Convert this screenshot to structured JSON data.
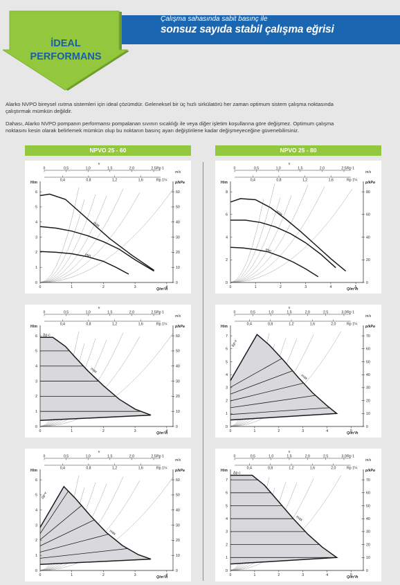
{
  "header": {
    "banner_sub": "Çalışma sahasında sabit basınç ile",
    "banner_main": "sonsuz sayıda stabil çalışma eğrisi",
    "arrow_line1": "İDEAL",
    "arrow_line2": "PERFORMANS"
  },
  "intro": {
    "p1_l1": "Alarko NVPO bireysel ısıtma sistemleri için ideal çözümdür. Geleneksel bir üç hızlı sirkülatörü her zaman optimum sistem çalışma noktasında",
    "p1_l2": "çalıştırmak mümkün değildir.",
    "p2_l1": "Dahası, Alarko NVPO pompanın performansı pompalanan sıvının sıcaklığı ile veya diğer işletim koşullarına göre değişmez. Optimum çalışma",
    "p2_l2": "noktasını kesin olarak belirlemek mümkün olup bu noktanın basınç ayarı değiştirilene kadar değişmeyeceğine güvenebilirsiniz."
  },
  "columns": [
    {
      "title": "NPVO 25 - 60"
    },
    {
      "title": "NPVO 25 - 80"
    }
  ],
  "colors": {
    "curve": "#1a1a1a",
    "fill": "#d9d9dd",
    "grid": "#8a8a8a",
    "banner": "#1a66b0",
    "arrow": "#93c83e",
    "col_head": "#93c83e"
  },
  "chart_data": [
    {
      "type": "line",
      "model": "NPVO 25 - 60",
      "mode": "speed",
      "ylabel": "H/m",
      "y2label": "p/kPa",
      "xlabel": "Q/m³/h",
      "v_label": "v",
      "v_unit": "m/s",
      "rp_label": "Rp 1¼",
      "v_ticks": [
        "0",
        "0,5",
        "1,0",
        "1,5",
        "2,0",
        "2,5"
      ],
      "v2_ticks": [
        "0,4",
        "0,8",
        "1,2",
        "1,6"
      ],
      "rp_top": "Rp 1",
      "xticks": [
        0,
        1,
        2,
        3,
        4
      ],
      "yticks": [
        0,
        1,
        2,
        3,
        4,
        5,
        6
      ],
      "y2ticks": [
        0,
        10,
        20,
        30,
        40,
        50,
        60
      ],
      "xlim": [
        0,
        4.2
      ],
      "ylim": [
        0,
        6.6
      ],
      "y2lim": [
        0,
        66
      ],
      "curve_labels": [
        "max",
        "min"
      ],
      "series": [
        {
          "name": "max",
          "x": [
            0,
            0.3,
            0.8,
            1.5,
            2.2,
            2.9,
            3.6
          ],
          "y": [
            5.75,
            5.85,
            5.5,
            4.2,
            2.9,
            1.8,
            0.8
          ]
        },
        {
          "name": "",
          "x": [
            0,
            0.5,
            1,
            1.5,
            2,
            2.5,
            3,
            3.6
          ],
          "y": [
            3.7,
            3.6,
            3.4,
            3.1,
            2.7,
            2.2,
            1.5,
            0.75
          ]
        },
        {
          "name": "min",
          "x": [
            0,
            0.5,
            1,
            1.5,
            2,
            2.4,
            2.8
          ],
          "y": [
            2.05,
            2.0,
            1.9,
            1.7,
            1.4,
            1.0,
            0.55
          ]
        }
      ]
    },
    {
      "type": "line",
      "model": "NPVO 25 - 80",
      "mode": "speed",
      "ylabel": "H/m",
      "y2label": "p/kPa",
      "xlabel": "Q/m³/h",
      "v_label": "v",
      "v_unit": "m/s",
      "rp_label": "Rp 1¼",
      "v_ticks": [
        "0",
        "0,5",
        "1,0",
        "1,5",
        "2,0",
        "2,5"
      ],
      "v2_ticks": [
        "0,4",
        "0,8",
        "1,2",
        "1,6"
      ],
      "rp_top": "Rp 1",
      "xticks": [
        0,
        1,
        2,
        3,
        4,
        5
      ],
      "yticks": [
        0,
        2,
        4,
        6,
        8
      ],
      "y2ticks": [
        0,
        20,
        40,
        60,
        80
      ],
      "xlim": [
        0,
        5.3
      ],
      "ylim": [
        0,
        8.8
      ],
      "y2lim": [
        0,
        88
      ],
      "curve_labels": [
        "max",
        "min"
      ],
      "series": [
        {
          "name": "max",
          "x": [
            0,
            0.4,
            1,
            1.6,
            2.2,
            2.8,
            3.4,
            4.0,
            4.6
          ],
          "y": [
            7.1,
            7.4,
            7.3,
            6.6,
            5.6,
            4.5,
            3.3,
            2.1,
            1.0
          ]
        },
        {
          "name": "",
          "x": [
            0,
            0.6,
            1.2,
            1.8,
            2.4,
            3.0,
            3.6,
            4.2
          ],
          "y": [
            5.5,
            5.5,
            5.3,
            4.9,
            4.3,
            3.5,
            2.5,
            1.3
          ]
        },
        {
          "name": "min",
          "x": [
            0,
            0.5,
            1,
            1.5,
            2,
            2.5,
            3.0,
            3.5
          ],
          "y": [
            3.1,
            3.05,
            2.9,
            2.7,
            2.3,
            1.8,
            1.2,
            0.5
          ]
        }
      ]
    },
    {
      "type": "area",
      "model": "NPVO 25 - 60",
      "mode": "constant pressure",
      "ylabel": "H/m",
      "y2label": "p/kPa",
      "xlabel": "Q/m³/h",
      "v_label": "v",
      "v_unit": "m/s",
      "rp_label": "Rp 1¼",
      "v_ticks": [
        "0",
        "0,5",
        "1,0",
        "1,5",
        "2,0",
        "2,5"
      ],
      "v2_ticks": [
        "0,4",
        "0,8",
        "1,2",
        "1,6"
      ],
      "rp_top": "Rp 1",
      "xticks": [
        0,
        1,
        2,
        3,
        4
      ],
      "yticks": [
        0,
        1,
        2,
        3,
        4,
        5,
        6
      ],
      "y2ticks": [
        0,
        10,
        20,
        30,
        40,
        50,
        60
      ],
      "xlim": [
        0,
        4.2
      ],
      "ylim": [
        0,
        6.6
      ],
      "y2lim": [
        0,
        66
      ],
      "curve_labels": [
        "Δp-c",
        "max"
      ],
      "envelope": {
        "x": [
          0,
          0.4,
          0.8,
          1.1,
          1.5,
          2.0,
          2.5,
          3.0,
          3.5,
          3.5,
          0,
          0
        ],
        "y": [
          5.9,
          5.9,
          5.3,
          4.6,
          3.7,
          2.7,
          1.8,
          1.15,
          0.75,
          0.75,
          0.4,
          5.9
        ]
      },
      "levels": [
        1,
        2,
        3,
        4,
        5
      ]
    },
    {
      "type": "area",
      "model": "NPVO 25 - 80",
      "mode": "variable pressure",
      "ylabel": "H/m",
      "y2label": "p/kPa",
      "xlabel": "Q/m³/h",
      "v_label": "v",
      "v_unit": "m/s",
      "rp_label": "Rp 1¼",
      "v_ticks": [
        "0",
        "0,5",
        "1,0",
        "1,5",
        "2,0",
        "2,5",
        "3,0"
      ],
      "v2_ticks": [
        "0,4",
        "0,8",
        "1,2",
        "1,6",
        "2,0"
      ],
      "rp_top": "Rp 1",
      "xticks": [
        0,
        1,
        2,
        3,
        4,
        5
      ],
      "yticks": [
        0,
        1,
        2,
        3,
        4,
        5,
        6,
        7
      ],
      "y2ticks": [
        0,
        10,
        20,
        30,
        40,
        50,
        60,
        70
      ],
      "xlim": [
        0,
        5.5
      ],
      "ylim": [
        0,
        7.7
      ],
      "y2lim": [
        0,
        77
      ],
      "curve_labels": [
        "Δp-v",
        "max"
      ],
      "envelope": {
        "x": [
          0,
          1.1,
          1.6,
          2.2,
          2.8,
          3.4,
          4.0,
          4.4,
          0,
          0
        ],
        "y": [
          3.55,
          7.1,
          6.3,
          5.1,
          3.8,
          2.6,
          1.6,
          1.0,
          0.5,
          3.55
        ]
      },
      "levels": [
        1,
        2,
        3,
        4,
        5
      ]
    },
    {
      "type": "area",
      "model": "NPVO 25 - 60",
      "mode": "variable pressure",
      "ylabel": "H/m",
      "y2label": "p/kPa",
      "xlabel": "Q/m³/h",
      "v_label": "v",
      "v_unit": "m/s",
      "rp_label": "Rp 1¼",
      "v_ticks": [
        "0",
        "0,5",
        "1,0",
        "1,5",
        "2,0",
        "2,5"
      ],
      "v2_ticks": [
        "0,4",
        "0,8",
        "1,2",
        "1,6"
      ],
      "rp_top": "Rp 1",
      "xticks": [
        0,
        1,
        2,
        3,
        4
      ],
      "yticks": [
        0,
        1,
        2,
        3,
        4,
        5,
        6
      ],
      "y2ticks": [
        0,
        10,
        20,
        30,
        40,
        50,
        60
      ],
      "xlim": [
        0,
        4.2
      ],
      "ylim": [
        0,
        6.6
      ],
      "y2lim": [
        0,
        66
      ],
      "curve_labels": [
        "Δp-v",
        "max"
      ],
      "envelope": {
        "x": [
          0,
          0.75,
          1.1,
          1.6,
          2.1,
          2.6,
          3.1,
          3.5,
          0,
          0
        ],
        "y": [
          2.85,
          5.55,
          4.8,
          3.6,
          2.5,
          1.65,
          1.05,
          0.75,
          0.4,
          2.85
        ]
      },
      "levels": [
        1,
        2,
        3,
        4,
        5
      ]
    },
    {
      "type": "area",
      "model": "NPVO 25 - 80",
      "mode": "constant pressure",
      "ylabel": "H/m",
      "y2label": "p/kPa",
      "xlabel": "Q/m³/h",
      "v_label": "v",
      "v_unit": "m/s",
      "rp_label": "Rp 1¼",
      "v_ticks": [
        "0",
        "0,5",
        "1,0",
        "1,5",
        "2,0",
        "2,5",
        "3,0"
      ],
      "v2_ticks": [
        "0,4",
        "0,8",
        "1,2",
        "1,6",
        "2,0"
      ],
      "rp_top": "Rp 1",
      "xticks": [
        0,
        1,
        2,
        3,
        4,
        5
      ],
      "yticks": [
        0,
        1,
        2,
        3,
        4,
        5,
        6,
        7
      ],
      "y2ticks": [
        0,
        10,
        20,
        30,
        40,
        50,
        60,
        70
      ],
      "xlim": [
        0,
        5.5
      ],
      "ylim": [
        0,
        7.7
      ],
      "y2lim": [
        0,
        77
      ],
      "curve_labels": [
        "Δp-c",
        "max"
      ],
      "envelope": {
        "x": [
          0,
          0.9,
          1.4,
          2.0,
          2.6,
          3.2,
          3.8,
          4.4,
          0,
          0
        ],
        "y": [
          7.35,
          7.35,
          6.6,
          5.3,
          4.0,
          2.8,
          1.8,
          1.0,
          0.5,
          7.35
        ]
      },
      "levels": [
        1,
        2,
        3,
        4,
        5,
        6,
        7
      ]
    }
  ]
}
